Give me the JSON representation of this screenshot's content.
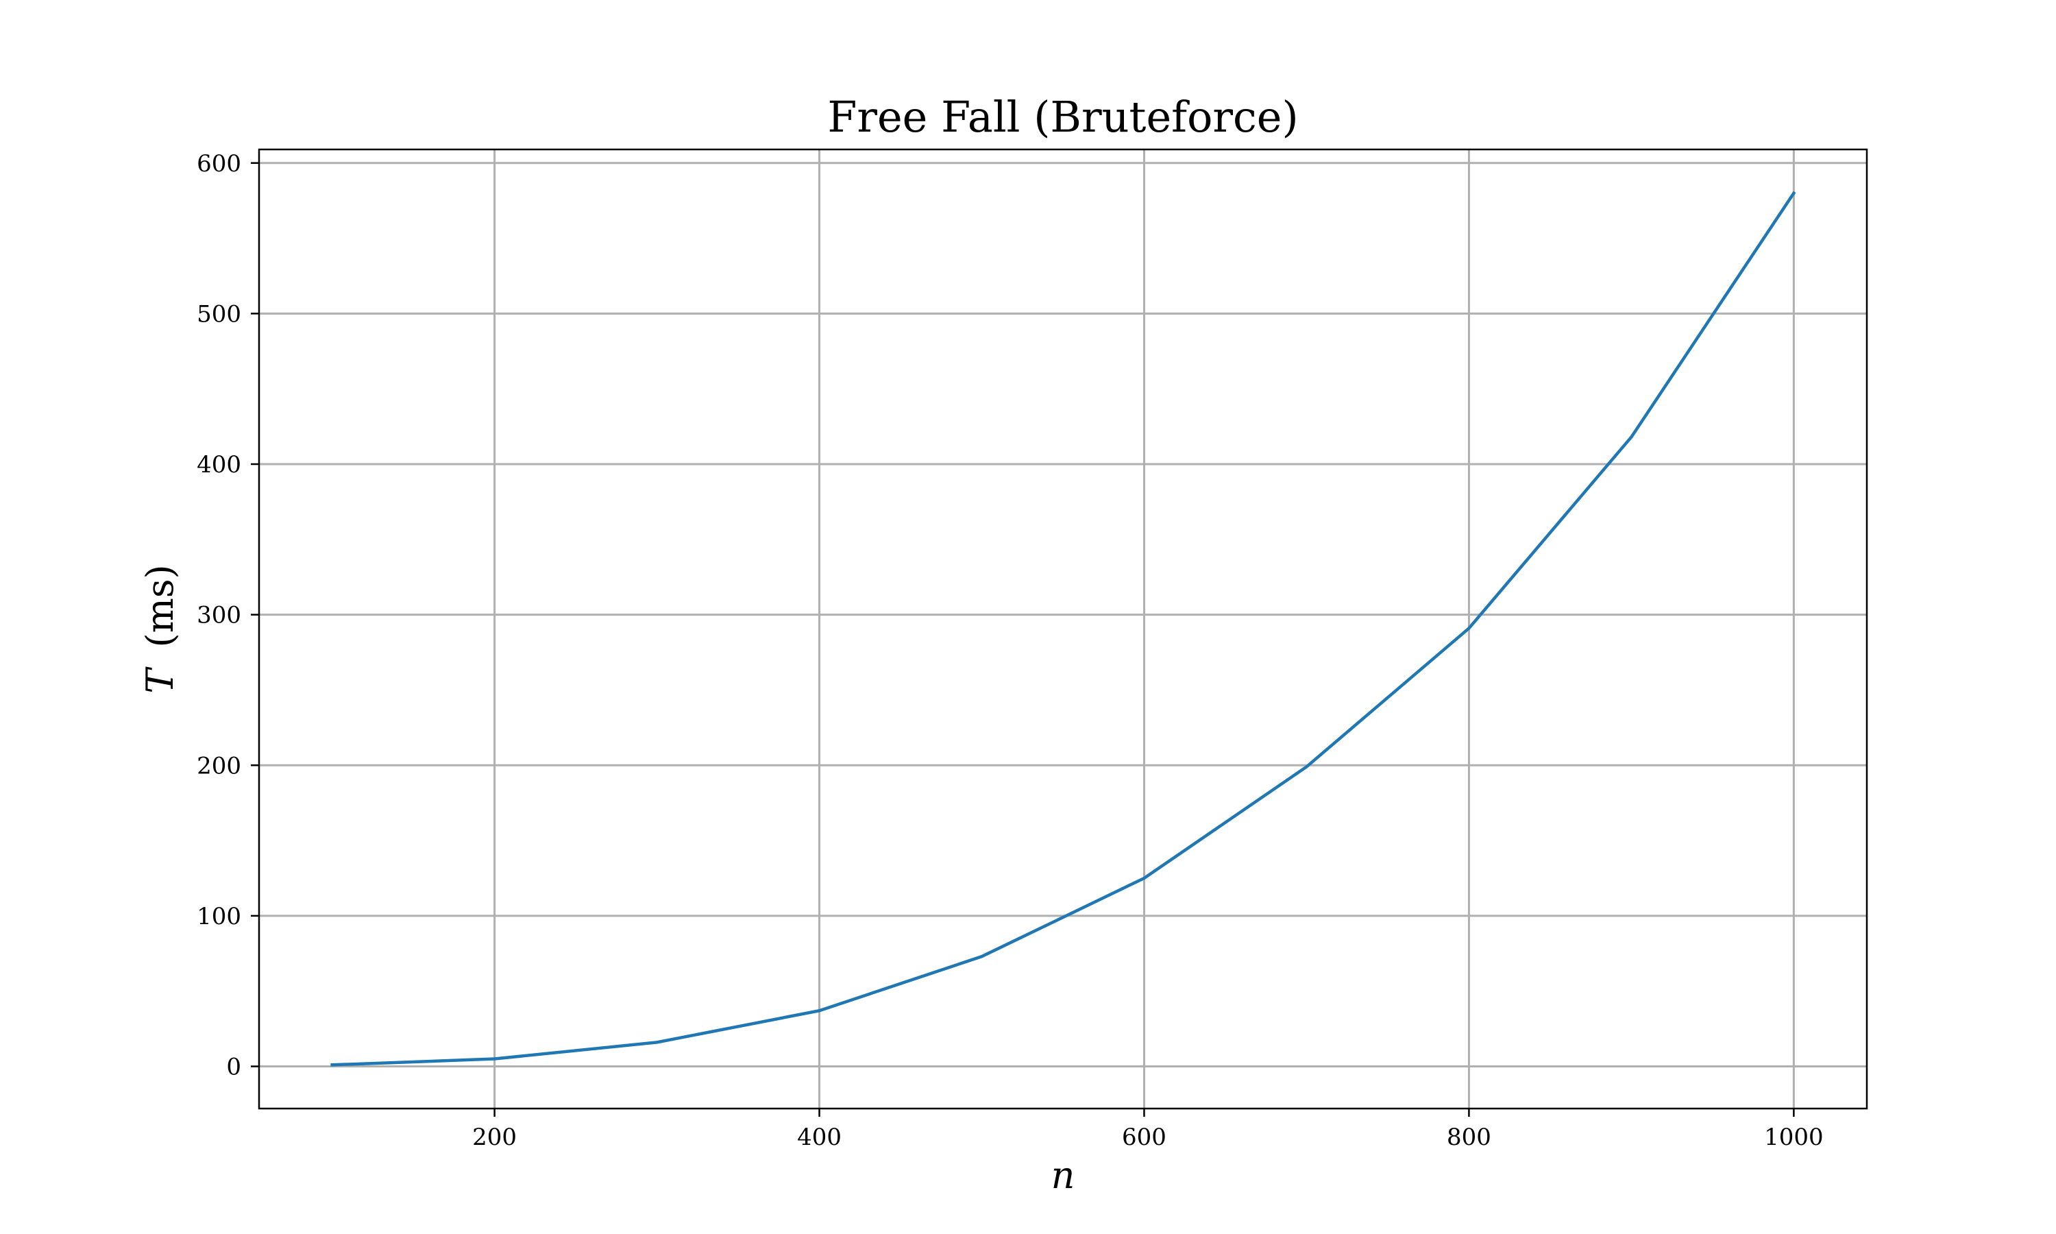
{
  "chart_data": {
    "type": "line",
    "title": "Free Fall (Bruteforce)",
    "xlabel": "n",
    "ylabel": {
      "symbol": "T",
      "unit": "(ms)"
    },
    "xlim": [
      55,
      1045
    ],
    "ylim": [
      -28,
      609
    ],
    "xticks": [
      200,
      400,
      600,
      800,
      1000
    ],
    "yticks": [
      0,
      100,
      200,
      300,
      400,
      500,
      600
    ],
    "grid": true,
    "series": [
      {
        "color": "#1f77b4",
        "x": [
          100,
          200,
          300,
          400,
          500,
          600,
          700,
          800,
          900,
          1000
        ],
        "y": [
          1,
          5,
          16,
          37,
          73,
          125,
          199,
          291,
          418,
          580
        ]
      }
    ]
  }
}
